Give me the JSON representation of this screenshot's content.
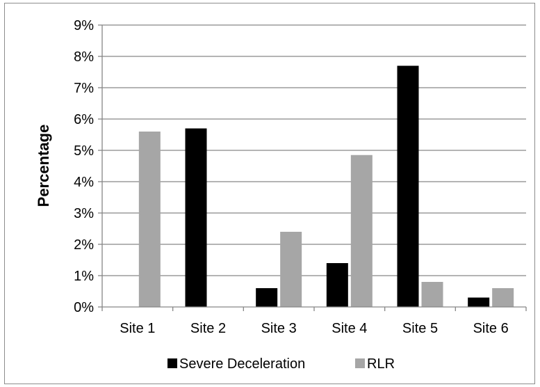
{
  "chart_data": {
    "type": "bar",
    "categories": [
      "Site 1",
      "Site 2",
      "Site 3",
      "Site 4",
      "Site 5",
      "Site 6"
    ],
    "series": [
      {
        "name": "Severe Deceleration",
        "values": [
          0,
          5.7,
          0.6,
          1.4,
          7.7,
          0.3
        ],
        "color": "#000000"
      },
      {
        "name": "RLR",
        "values": [
          5.6,
          0,
          2.4,
          4.85,
          0.8,
          0.6
        ],
        "color": "#a6a6a6"
      }
    ],
    "ylabel": "Percentage",
    "xlabel": "",
    "title": "",
    "ylim": [
      0,
      9
    ],
    "yticks": [
      "0%",
      "1%",
      "2%",
      "3%",
      "4%",
      "5%",
      "6%",
      "7%",
      "8%",
      "9%"
    ],
    "grid": true,
    "legend_position": "bottom"
  }
}
